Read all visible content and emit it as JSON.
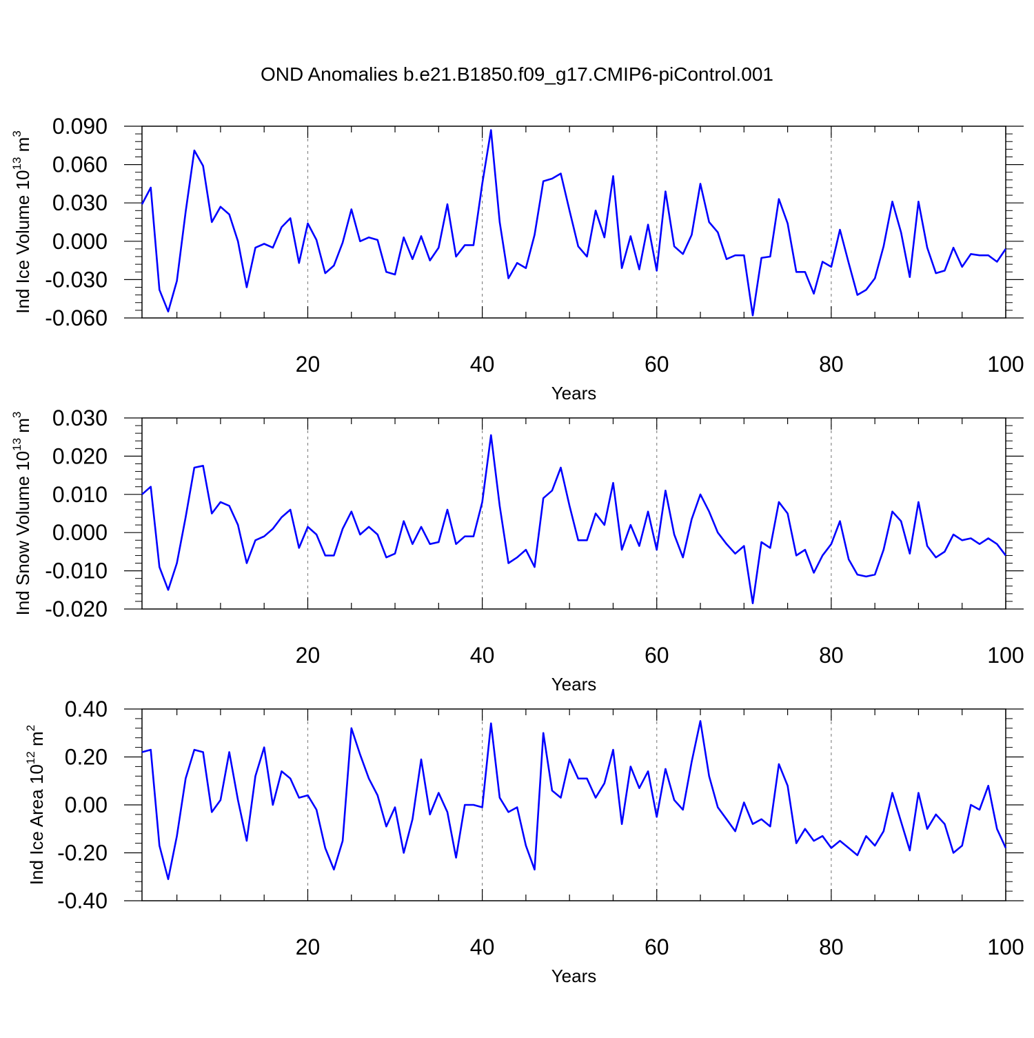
{
  "figure": {
    "title": "OND Anomalies b.e21.B1850.f09_g17.CMIP6-piControl.001",
    "line_color": "#0000ff",
    "grid_color": "#888888"
  },
  "chart_data": [
    {
      "type": "line",
      "xlabel": "Years",
      "ylabel_main": "Ind Ice Volume 10",
      "ylabel_exp": "13",
      "ylabel_unit": " m",
      "ylabel_unit_exp": "3",
      "xlim": [
        1,
        100
      ],
      "ylim": [
        -0.06,
        0.09
      ],
      "xticks": [
        20,
        40,
        60,
        80,
        100
      ],
      "xtick_labels": [
        "20",
        "40",
        "60",
        "80",
        "100"
      ],
      "yticks": [
        -0.06,
        -0.03,
        0.0,
        0.03,
        0.06,
        0.09
      ],
      "ytick_labels": [
        "-0.060",
        "-0.030",
        "0.000",
        "0.030",
        "0.060",
        "0.090"
      ],
      "vgrid": [
        20,
        40,
        60,
        80
      ],
      "series": [
        {
          "name": "Ind Ice Volume",
          "x_start": 1,
          "values": [
            0.029,
            0.042,
            -0.038,
            -0.055,
            -0.031,
            0.023,
            0.071,
            0.059,
            0.015,
            0.027,
            0.021,
            0.0,
            -0.036,
            -0.005,
            -0.002,
            -0.005,
            0.011,
            0.018,
            -0.017,
            0.014,
            0.001,
            -0.025,
            -0.019,
            -0.001,
            0.025,
            0.0,
            0.003,
            0.001,
            -0.024,
            -0.026,
            0.003,
            -0.014,
            0.004,
            -0.015,
            -0.005,
            0.029,
            -0.012,
            -0.003,
            -0.003,
            0.045,
            0.087,
            0.015,
            -0.029,
            -0.017,
            -0.021,
            0.005,
            0.047,
            0.049,
            0.053,
            0.024,
            -0.004,
            -0.012,
            0.024,
            0.003,
            0.051,
            -0.021,
            0.004,
            -0.022,
            0.013,
            -0.023,
            0.039,
            -0.004,
            -0.01,
            0.005,
            0.045,
            0.015,
            0.007,
            -0.014,
            -0.011,
            -0.011,
            -0.058,
            -0.013,
            -0.012,
            0.033,
            0.014,
            -0.024,
            -0.024,
            -0.041,
            -0.016,
            -0.02,
            0.009,
            -0.017,
            -0.042,
            -0.038,
            -0.029,
            -0.004,
            0.031,
            0.007,
            -0.028,
            0.031,
            -0.005,
            -0.025,
            -0.023,
            -0.005,
            -0.02,
            -0.01,
            -0.011,
            -0.011,
            -0.016,
            -0.006
          ]
        }
      ]
    },
    {
      "type": "line",
      "xlabel": "Years",
      "ylabel_main": "Ind Snow Volume 10",
      "ylabel_exp": "13",
      "ylabel_unit": " m",
      "ylabel_unit_exp": "3",
      "xlim": [
        1,
        100
      ],
      "ylim": [
        -0.02,
        0.03
      ],
      "xticks": [
        20,
        40,
        60,
        80,
        100
      ],
      "xtick_labels": [
        "20",
        "40",
        "60",
        "80",
        "100"
      ],
      "yticks": [
        -0.02,
        -0.01,
        0.0,
        0.01,
        0.02,
        0.03
      ],
      "ytick_labels": [
        "-0.020",
        "-0.010",
        "0.000",
        "0.010",
        "0.020",
        "0.030"
      ],
      "vgrid": [
        20,
        40,
        60,
        80
      ],
      "series": [
        {
          "name": "Ind Snow Volume",
          "x_start": 1,
          "values": [
            0.01,
            0.012,
            -0.009,
            -0.015,
            -0.008,
            0.004,
            0.017,
            0.0175,
            0.005,
            0.008,
            0.007,
            0.002,
            -0.008,
            -0.002,
            -0.001,
            0.001,
            0.004,
            0.006,
            -0.004,
            0.0015,
            -0.0005,
            -0.006,
            -0.006,
            0.001,
            0.0055,
            -0.0005,
            0.0015,
            -0.0005,
            -0.0065,
            -0.0055,
            0.003,
            -0.003,
            0.0015,
            -0.003,
            -0.0025,
            0.006,
            -0.003,
            -0.001,
            -0.001,
            0.008,
            0.0255,
            0.007,
            -0.008,
            -0.0065,
            -0.0045,
            -0.009,
            0.009,
            0.011,
            0.017,
            0.007,
            -0.002,
            -0.002,
            0.005,
            0.002,
            0.013,
            -0.0045,
            0.002,
            -0.0035,
            0.0055,
            -0.0045,
            0.011,
            -0.0005,
            -0.0065,
            0.0035,
            0.01,
            0.0055,
            0.0,
            -0.003,
            -0.0055,
            -0.0035,
            -0.0185,
            -0.0025,
            -0.004,
            0.008,
            0.005,
            -0.006,
            -0.0045,
            -0.0105,
            -0.006,
            -0.003,
            0.003,
            -0.007,
            -0.011,
            -0.0115,
            -0.011,
            -0.0045,
            0.0055,
            0.003,
            -0.0055,
            0.008,
            -0.0035,
            -0.0065,
            -0.005,
            -0.0005,
            -0.002,
            -0.0015,
            -0.003,
            -0.0015,
            -0.003,
            -0.006
          ]
        }
      ]
    },
    {
      "type": "line",
      "xlabel": "Years",
      "ylabel_main": "Ind Ice Area 10",
      "ylabel_exp": "12",
      "ylabel_unit": " m",
      "ylabel_unit_exp": "2",
      "xlim": [
        1,
        100
      ],
      "ylim": [
        -0.4,
        0.4
      ],
      "xticks": [
        20,
        40,
        60,
        80,
        100
      ],
      "xtick_labels": [
        "20",
        "40",
        "60",
        "80",
        "100"
      ],
      "yticks": [
        -0.4,
        -0.2,
        0.0,
        0.2,
        0.4
      ],
      "ytick_labels": [
        "-0.40",
        "-0.20",
        "0.00",
        "0.20",
        "0.40"
      ],
      "vgrid": [
        20,
        40,
        60,
        80
      ],
      "series": [
        {
          "name": "Ind Ice Area",
          "x_start": 1,
          "values": [
            0.22,
            0.23,
            -0.17,
            -0.31,
            -0.13,
            0.11,
            0.23,
            0.22,
            -0.03,
            0.02,
            0.22,
            0.02,
            -0.15,
            0.12,
            0.24,
            0.0,
            0.14,
            0.11,
            0.03,
            0.04,
            -0.02,
            -0.18,
            -0.27,
            -0.15,
            0.32,
            0.21,
            0.11,
            0.04,
            -0.09,
            -0.01,
            -0.2,
            -0.06,
            0.19,
            -0.04,
            0.05,
            -0.03,
            -0.22,
            0.0,
            0.0,
            -0.01,
            0.34,
            0.03,
            -0.03,
            -0.01,
            -0.17,
            -0.27,
            0.3,
            0.06,
            0.03,
            0.19,
            0.11,
            0.11,
            0.03,
            0.09,
            0.23,
            -0.08,
            0.16,
            0.07,
            0.14,
            -0.05,
            0.15,
            0.02,
            -0.02,
            0.18,
            0.35,
            0.12,
            -0.01,
            -0.06,
            -0.11,
            0.01,
            -0.08,
            -0.06,
            -0.09,
            0.17,
            0.08,
            -0.16,
            -0.1,
            -0.15,
            -0.13,
            -0.18,
            -0.15,
            -0.18,
            -0.21,
            -0.13,
            -0.17,
            -0.11,
            0.05,
            -0.07,
            -0.19,
            0.05,
            -0.1,
            -0.04,
            -0.08,
            -0.2,
            -0.17,
            0.0,
            -0.02,
            0.08,
            -0.1,
            -0.18
          ]
        }
      ]
    }
  ]
}
